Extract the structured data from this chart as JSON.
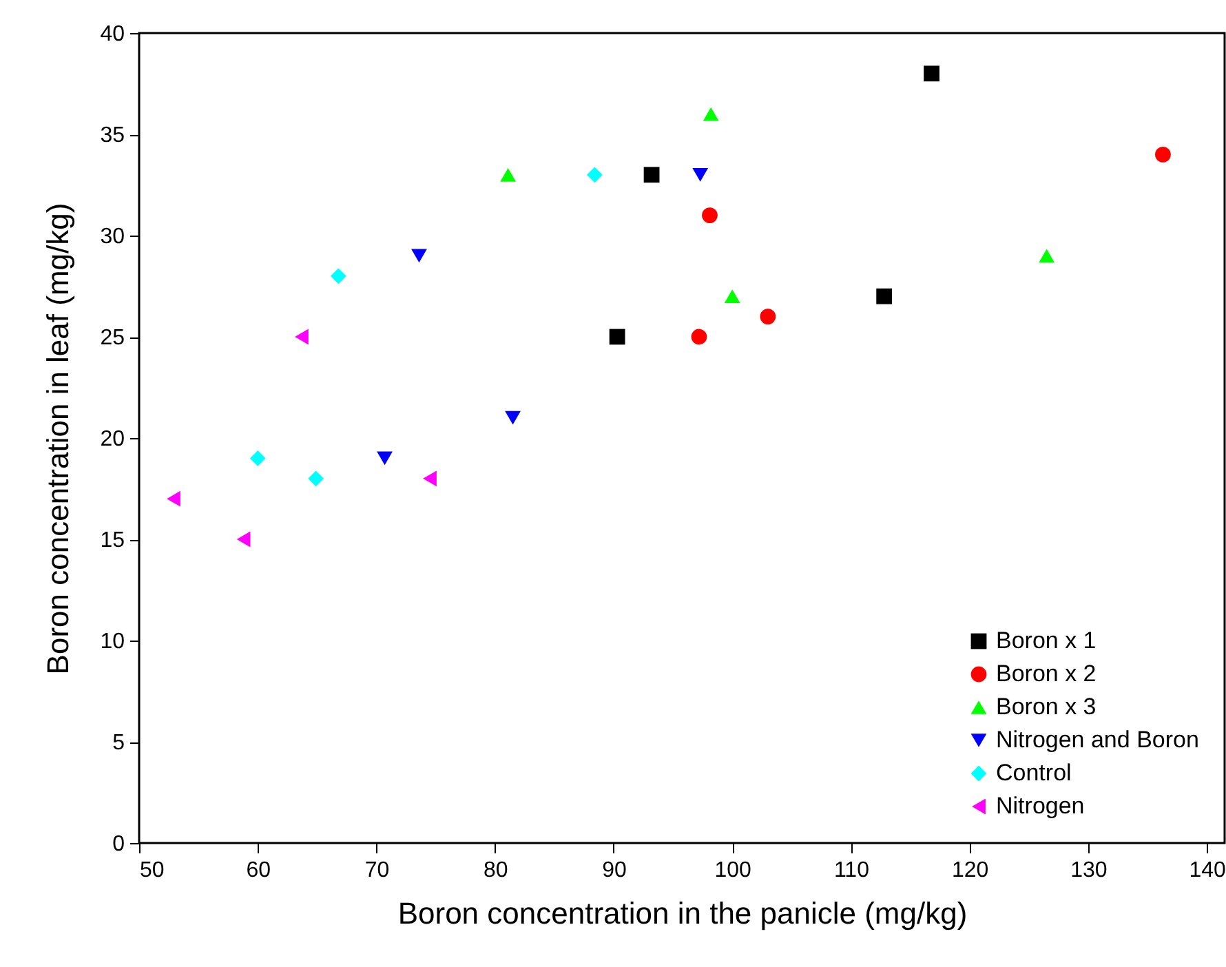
{
  "chart_data": {
    "type": "scatter",
    "xlabel": "Boron concentration in the panicle (mg/kg)",
    "ylabel": "Boron concentration in leaf (mg/kg)",
    "xlim": [
      50,
      141.5
    ],
    "ylim": [
      0,
      40
    ],
    "xticks": [
      50,
      60,
      70,
      80,
      90,
      100,
      110,
      120,
      130,
      140
    ],
    "yticks": [
      0,
      5,
      10,
      15,
      20,
      25,
      30,
      35,
      40
    ],
    "grid": false,
    "legend": "bottom right",
    "series": [
      {
        "name": "Boron x 1",
        "color": "#000000",
        "marker": "square",
        "x": [
          90.3,
          93.2,
          112.8,
          116.8
        ],
        "values": [
          25,
          33,
          27,
          38
        ]
      },
      {
        "name": "Boron x 2",
        "color": "#ff0000",
        "marker": "circle",
        "x": [
          97.2,
          98.1,
          103,
          136.3
        ],
        "values": [
          25,
          31,
          26,
          34
        ]
      },
      {
        "name": "Boron x 3",
        "color": "#00ff00",
        "marker": "triangle",
        "x": [
          81.1,
          98.2,
          100,
          126.5
        ],
        "values": [
          33,
          36,
          27,
          29
        ]
      },
      {
        "name": "Nitrogen and Boron",
        "color": "#0000ff",
        "marker": "triangle-down",
        "x": [
          73.6,
          70.7,
          81.5,
          97.3
        ],
        "values": [
          29,
          19,
          21,
          33
        ]
      },
      {
        "name": "Control",
        "color": "#00ffff",
        "marker": "diamond",
        "x": [
          66.8,
          60,
          64.9,
          88.4
        ],
        "values": [
          28,
          19,
          18,
          33
        ]
      },
      {
        "name": "Nitrogen",
        "color": "#ff00ff",
        "marker": "triangle-left",
        "x": [
          63.7,
          52.9,
          58.8,
          74.5
        ],
        "values": [
          25,
          17,
          15,
          18
        ]
      }
    ]
  }
}
